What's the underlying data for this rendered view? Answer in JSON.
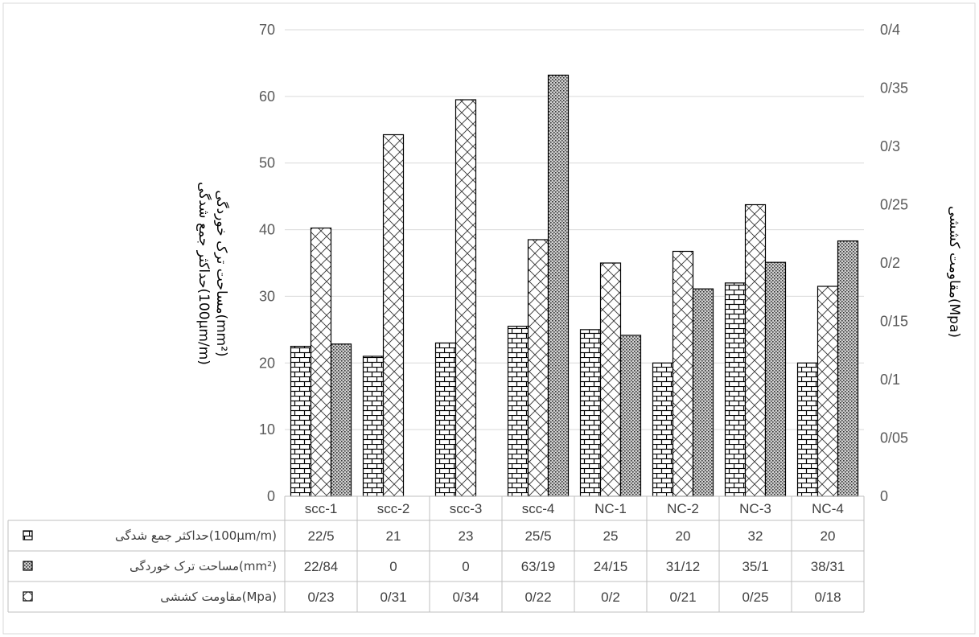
{
  "chart_data": {
    "type": "bar",
    "categories": [
      "scc-1",
      "scc-2",
      "scc-3",
      "scc-4",
      "NC-1",
      "NC-2",
      "NC-3",
      "NC-4"
    ],
    "left_axis": {
      "label_line1": "حداکثر جمع شدگی(100µm/m)",
      "label_line2": "مساحت ترک خوردگی(mm²)",
      "ylim": [
        0,
        70
      ],
      "ticks": [
        "0",
        "10",
        "20",
        "30",
        "40",
        "50",
        "60",
        "70"
      ]
    },
    "right_axis": {
      "label": "مقاومت کششی(Mpa)",
      "ylim": [
        0,
        0.4
      ],
      "ticks": [
        "0",
        "0/05",
        "0/1",
        "0/15",
        "0/2",
        "0/25",
        "0/3",
        "0/35",
        "0/4"
      ]
    },
    "series": [
      {
        "name": "حداکثر جمع شدگی(100µm/m)",
        "axis": "left",
        "pattern": "brick",
        "values": [
          22.5,
          21,
          23,
          25.5,
          25,
          20,
          32,
          20
        ],
        "table_values": [
          "22/5",
          "21",
          "23",
          "25/5",
          "25",
          "20",
          "32",
          "20"
        ]
      },
      {
        "name": "مساحت ترک خوردگی(mm²)",
        "axis": "left",
        "pattern": "dense-dots",
        "values": [
          22.84,
          0,
          0,
          63.19,
          24.15,
          31.12,
          35.1,
          38.31
        ],
        "table_values": [
          "22/84",
          "0",
          "0",
          "63/19",
          "24/15",
          "31/12",
          "35/1",
          "38/31"
        ]
      },
      {
        "name": "مقاومت کششی(Mpa)",
        "axis": "right",
        "pattern": "diagonal-cross",
        "values": [
          0.23,
          0.31,
          0.34,
          0.22,
          0.2,
          0.21,
          0.25,
          0.18
        ],
        "table_values": [
          "0/23",
          "0/31",
          "0/34",
          "0/22",
          "0/2",
          "0/21",
          "0/25",
          "0/18"
        ]
      }
    ],
    "data_table": true,
    "gridlines": true,
    "legend": "data-table-keys"
  }
}
